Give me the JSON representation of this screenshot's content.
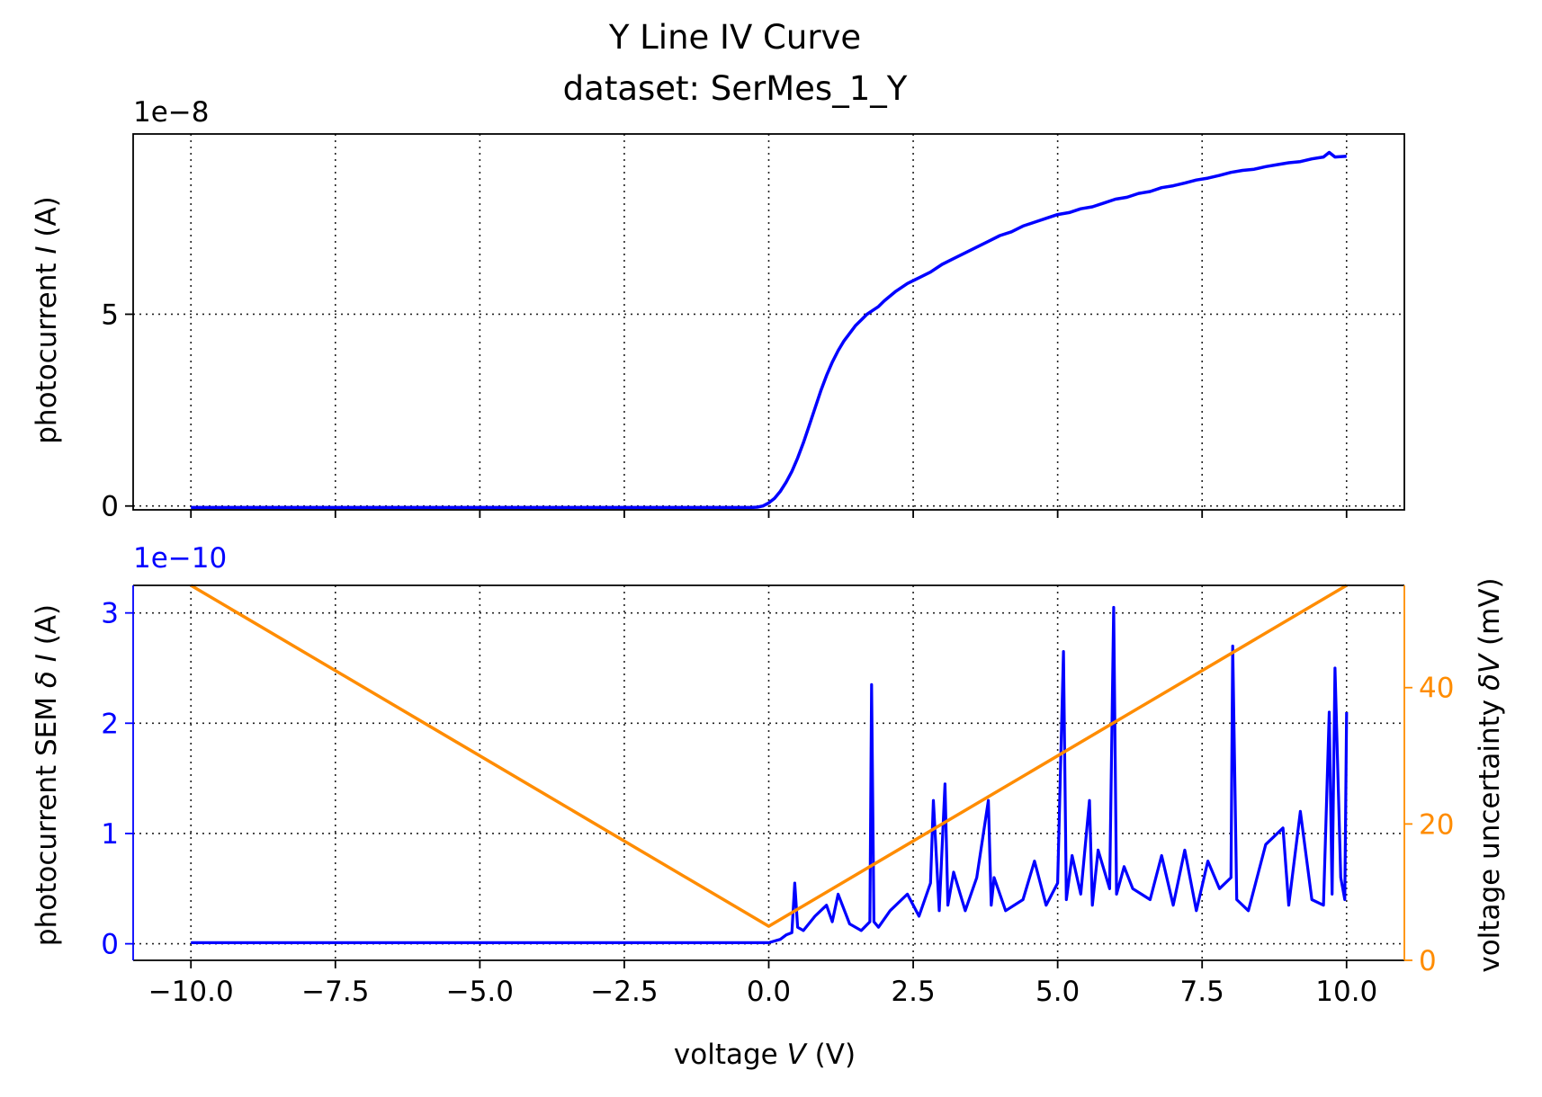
{
  "chart_data": [
    {
      "type": "line",
      "title": "Y Line IV Curve",
      "subtitle": "dataset: SerMes_1_Y",
      "ylabel_prefix": "photocurrent ",
      "ylabel_var": "I",
      "ylabel_suffix": " (A)",
      "offset_text": "1e−8",
      "xlim": [
        -11,
        11
      ],
      "ylim": [
        -0.1,
        9.7
      ],
      "scale": 1e-08,
      "xticks": [
        -10,
        -7.5,
        -5,
        -2.5,
        0,
        2.5,
        5,
        7.5,
        10
      ],
      "yticks": [
        0,
        5
      ],
      "ytick_labels": [
        "0",
        "5"
      ],
      "grid": true,
      "colors": {
        "series": "#0000ff"
      },
      "series": [
        {
          "x": [
            -10,
            -9,
            -8,
            -7,
            -6,
            -5,
            -4,
            -3,
            -2,
            -1,
            -0.5,
            -0.3,
            -0.2,
            -0.1,
            0,
            0.1,
            0.2,
            0.3,
            0.4,
            0.5,
            0.6,
            0.7,
            0.8,
            0.9,
            1.0,
            1.1,
            1.2,
            1.3,
            1.4,
            1.5,
            1.6,
            1.7,
            1.8,
            1.9,
            2.0,
            2.2,
            2.4,
            2.6,
            2.8,
            3.0,
            3.2,
            3.4,
            3.6,
            3.8,
            4.0,
            4.2,
            4.4,
            4.6,
            4.8,
            5.0,
            5.2,
            5.4,
            5.6,
            5.8,
            6.0,
            6.2,
            6.4,
            6.6,
            6.8,
            7.0,
            7.2,
            7.4,
            7.6,
            7.8,
            8.0,
            8.2,
            8.4,
            8.6,
            8.8,
            9.0,
            9.2,
            9.4,
            9.6,
            9.7,
            9.8,
            10.0
          ],
          "values": [
            -0.04,
            -0.04,
            -0.04,
            -0.04,
            -0.04,
            -0.04,
            -0.04,
            -0.04,
            -0.04,
            -0.04,
            -0.04,
            -0.04,
            -0.03,
            0.0,
            0.08,
            0.2,
            0.38,
            0.62,
            0.9,
            1.25,
            1.65,
            2.1,
            2.55,
            3.0,
            3.4,
            3.75,
            4.05,
            4.3,
            4.5,
            4.7,
            4.85,
            5.0,
            5.1,
            5.2,
            5.35,
            5.6,
            5.8,
            5.95,
            6.1,
            6.3,
            6.45,
            6.6,
            6.75,
            6.9,
            7.05,
            7.15,
            7.3,
            7.4,
            7.5,
            7.6,
            7.65,
            7.75,
            7.8,
            7.9,
            8.0,
            8.05,
            8.15,
            8.2,
            8.3,
            8.35,
            8.42,
            8.5,
            8.55,
            8.62,
            8.7,
            8.75,
            8.78,
            8.85,
            8.9,
            8.95,
            8.98,
            9.05,
            9.1,
            9.22,
            9.1,
            9.12
          ]
        }
      ]
    },
    {
      "type": "line",
      "xlabel_prefix": "voltage ",
      "xlabel_var": "V",
      "xlabel_suffix": " (V)",
      "ylabel_prefix": "photocurrent SEM ",
      "ylabel_var": "δ I",
      "ylabel_suffix": " (A)",
      "y2label_prefix": "voltage uncertainty ",
      "y2label_var": "δV",
      "y2label_suffix": " (mV)",
      "offset_text": "1e−10",
      "xlim": [
        -11,
        11
      ],
      "ylim": [
        -0.15,
        3.25
      ],
      "y2lim": [
        0,
        55
      ],
      "scale": 1e-10,
      "xticks": [
        -10,
        -7.5,
        -5,
        -2.5,
        0,
        2.5,
        5,
        7.5,
        10
      ],
      "xtick_labels": [
        "−10.0",
        "−7.5",
        "−5.0",
        "−2.5",
        "0.0",
        "2.5",
        "5.0",
        "7.5",
        "10.0"
      ],
      "yticks": [
        0,
        1,
        2,
        3
      ],
      "ytick_labels": [
        "0",
        "1",
        "2",
        "3"
      ],
      "y2ticks": [
        0,
        20,
        40
      ],
      "y2tick_labels": [
        "0",
        "20",
        "40"
      ],
      "grid": true,
      "colors": {
        "sem": "#0000ff",
        "uncertainty": "#ff8c00"
      },
      "series": [
        {
          "name": "photocurrent SEM",
          "axis": "left",
          "x": [
            -10,
            -8,
            -6,
            -4,
            -2,
            -0.2,
            0,
            0.2,
            0.3,
            0.4,
            0.45,
            0.5,
            0.6,
            0.8,
            1.0,
            1.1,
            1.2,
            1.4,
            1.6,
            1.75,
            1.78,
            1.82,
            1.9,
            2.1,
            2.4,
            2.6,
            2.8,
            2.85,
            2.95,
            3.05,
            3.1,
            3.2,
            3.4,
            3.6,
            3.8,
            3.85,
            3.9,
            4.1,
            4.4,
            4.6,
            4.8,
            5.0,
            5.1,
            5.15,
            5.25,
            5.4,
            5.55,
            5.6,
            5.7,
            5.9,
            5.97,
            6.02,
            6.15,
            6.3,
            6.6,
            6.8,
            7.0,
            7.2,
            7.4,
            7.6,
            7.8,
            8.0,
            8.03,
            8.1,
            8.3,
            8.6,
            8.9,
            9.0,
            9.2,
            9.4,
            9.6,
            9.7,
            9.75,
            9.8,
            9.9,
            9.97,
            10.0
          ],
          "values": [
            0.01,
            0.01,
            0.01,
            0.01,
            0.01,
            0.01,
            0.01,
            0.04,
            0.08,
            0.1,
            0.55,
            0.15,
            0.12,
            0.25,
            0.35,
            0.2,
            0.45,
            0.18,
            0.12,
            0.2,
            2.35,
            0.2,
            0.15,
            0.3,
            0.45,
            0.25,
            0.55,
            1.3,
            0.3,
            1.45,
            0.35,
            0.65,
            0.3,
            0.6,
            1.3,
            0.35,
            0.6,
            0.3,
            0.4,
            0.75,
            0.35,
            0.55,
            2.65,
            0.4,
            0.8,
            0.45,
            1.3,
            0.35,
            0.85,
            0.5,
            3.05,
            0.45,
            0.7,
            0.5,
            0.4,
            0.8,
            0.35,
            0.85,
            0.3,
            0.75,
            0.5,
            0.6,
            2.7,
            0.4,
            0.3,
            0.9,
            1.05,
            0.35,
            1.2,
            0.4,
            0.35,
            2.1,
            0.45,
            2.5,
            0.6,
            0.4,
            2.1
          ]
        },
        {
          "name": "voltage uncertainty",
          "axis": "right",
          "x": [
            -10,
            0,
            10
          ],
          "values": [
            55,
            5,
            55
          ]
        }
      ]
    }
  ]
}
